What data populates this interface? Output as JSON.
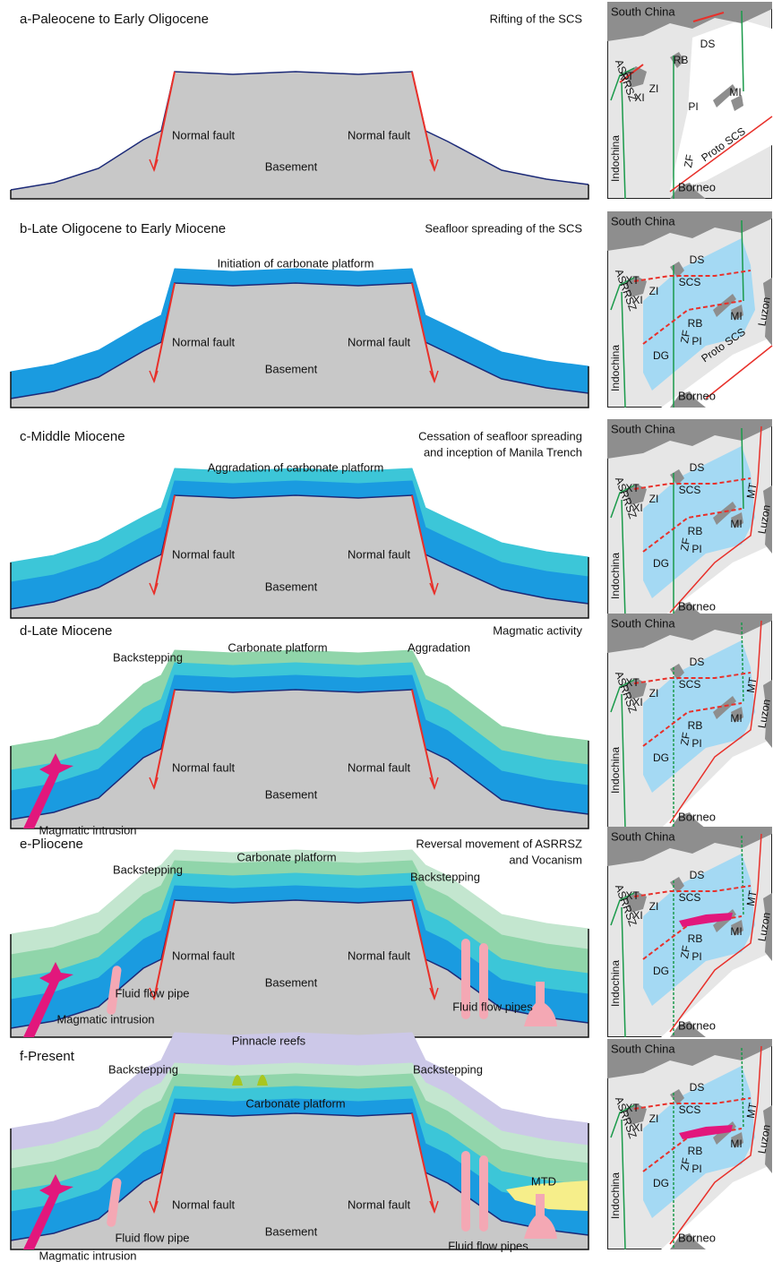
{
  "panels": [
    {
      "label": "a-Paleocene to Early Oligocene",
      "event": [
        "Rifting of the SCS"
      ],
      "section": {
        "fault_left": "Normal fault",
        "fault_right": "Normal fault",
        "basement": "Basement"
      },
      "map": {
        "region": "South China",
        "DS": "DS",
        "RB": "RB",
        "XT": "XT",
        "ZI": "ZI",
        "XI": "XI",
        "PI": "PI",
        "MI": "MI",
        "ASRRSZ": "ASRRSZ",
        "ZF": "ZF",
        "Proto_SCS": "Proto SCS",
        "Indochina": "Indochina",
        "Borneo": "Borneo"
      }
    },
    {
      "label": "b-Late Oligocene to Early Miocene",
      "event": [
        "Seafloor spreading of the SCS"
      ],
      "section": {
        "platform": "Initiation of carbonate platform",
        "fault_left": "Normal fault",
        "fault_right": "Normal fault",
        "basement": "Basement"
      },
      "map": {
        "region": "South China",
        "DS": "DS",
        "XT": "XT",
        "SCS": "SCS",
        "ZI": "ZI",
        "XI": "XI",
        "MI": "MI",
        "RB": "RB",
        "PI": "PI",
        "ZF": "ZF",
        "DG": "DG",
        "Proto_SCS": "Proto SCS",
        "ASRRSZ": "ASRRSZ",
        "Indochina": "Indochina",
        "Luzon": "Luzon",
        "Borneo": "Borneo"
      }
    },
    {
      "label": "c-Middle Miocene",
      "event": [
        "Cessation of seafloor spreading",
        "and inception of Manila Trench"
      ],
      "section": {
        "platform": "Aggradation of carbonate platform",
        "fault_left": "Normal fault",
        "fault_right": "Normal fault",
        "basement": "Basement"
      },
      "map": {
        "region": "South China",
        "DS": "DS",
        "XT": "XT",
        "SCS": "SCS",
        "ZI": "ZI",
        "XI": "XI",
        "MT": "MT",
        "MI": "MI",
        "RB": "RB",
        "PI": "PI",
        "ZF": "ZF",
        "DG": "DG",
        "ASRRSZ": "ASRRSZ",
        "Indochina": "Indochina",
        "Luzon": "Luzon",
        "Borneo": "Borneo"
      }
    },
    {
      "label": "d-Late Miocene",
      "event": [
        "Magmatic activity"
      ],
      "section": {
        "backstepping_left": "Backstepping",
        "platform": "Carbonate platform",
        "aggradation": "Aggradation",
        "fault_left": "Normal fault",
        "fault_right": "Normal fault",
        "basement": "Basement",
        "intrusion": "Magmatic intrusion"
      },
      "map": {
        "region": "South China",
        "DS": "DS",
        "XT": "XT",
        "SCS": "SCS",
        "ZI": "ZI",
        "XI": "XI",
        "MT": "MT",
        "MI": "MI",
        "RB": "RB",
        "PI": "PI",
        "ZF": "ZF",
        "DG": "DG",
        "ASRRSZ": "ASRRSZ",
        "Indochina": "Indochina",
        "Luzon": "Luzon",
        "Borneo": "Borneo"
      }
    },
    {
      "label": "e-Pliocene",
      "event": [
        "Reversal movement of ASRRSZ",
        "and Vocanism"
      ],
      "section": {
        "backstepping_left": "Backstepping",
        "platform": "Carbonate platform",
        "backstepping_right": "Backstepping",
        "fault_left": "Normal fault",
        "fault_right": "Normal fault",
        "basement": "Basement",
        "pipe_left": "Fluid flow pipe",
        "pipes_right": "Fluid flow pipes",
        "intrusion": "Magmatic intrusion"
      },
      "map": {
        "region": "South China",
        "DS": "DS",
        "XT": "XT",
        "SCS": "SCS",
        "ZI": "ZI",
        "XI": "XI",
        "MT": "MT",
        "MI": "MI",
        "RB": "RB",
        "PI": "PI",
        "ZF": "ZF",
        "DG": "DG",
        "ASRRSZ": "ASRRSZ",
        "Indochina": "Indochina",
        "Luzon": "Luzon",
        "Borneo": "Borneo"
      }
    },
    {
      "label": "f-Present",
      "event": [],
      "section": {
        "reefs": "Pinnacle reefs",
        "backstepping_left": "Backstepping",
        "backstepping_right": "Backstepping",
        "platform": "Carbonate platform",
        "mtd": "MTD",
        "fault_left": "Normal fault",
        "fault_right": "Normal fault",
        "basement": "Basement",
        "pipe_left": "Fluid flow pipe",
        "pipes_right": "Fluid flow pipes",
        "intrusion": "Magmatic intrusion"
      },
      "map": {
        "region": "South China",
        "DS": "DS",
        "XT": "XT",
        "SCS": "SCS",
        "ZI": "ZI",
        "XI": "XI",
        "MT": "MT",
        "MI": "MI",
        "RB": "RB",
        "PI": "PI",
        "ZF": "ZF",
        "DG": "DG",
        "ASRRSZ": "ASRRSZ",
        "Indochina": "Indochina",
        "Luzon": "Luzon",
        "Borneo": "Borneo"
      }
    }
  ]
}
